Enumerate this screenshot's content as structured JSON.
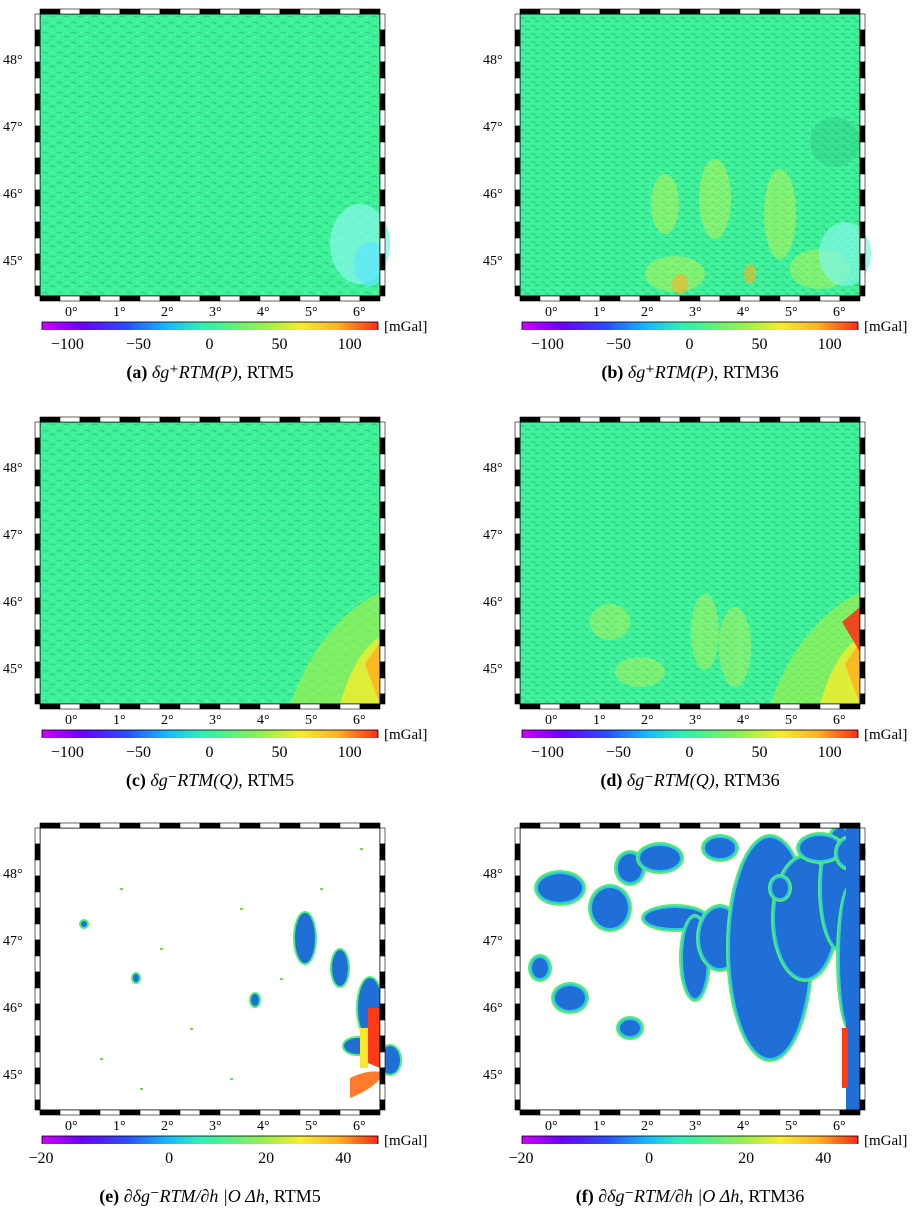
{
  "lat_ticks": [
    "48°",
    "47°",
    "46°",
    "45°"
  ],
  "lon_ticks": [
    "0°",
    "1°",
    "2°",
    "3°",
    "4°",
    "5°",
    "6°"
  ],
  "unit": "[mGal]",
  "colorbar_main": [
    "−100",
    "−50",
    "0",
    "50",
    "100"
  ],
  "colorbar_bottom": [
    "−20",
    "0",
    "20",
    "40"
  ],
  "colors": {
    "map_green": "#3ef29a",
    "blue_patch": "#1f6fd6",
    "colormap": [
      "#d000ff",
      "#6a00ff",
      "#2a4cff",
      "#14b8ff",
      "#2ff0b8",
      "#3ef29a",
      "#98f04e",
      "#f5ee2e",
      "#ffb022",
      "#ff2a16"
    ]
  },
  "panels": [
    {
      "id": "a",
      "letter": "(a)",
      "expr": "δg⁺RTM(P)",
      "model": "RTM5"
    },
    {
      "id": "b",
      "letter": "(b)",
      "expr": "δg⁺RTM(P)",
      "model": "RTM36"
    },
    {
      "id": "c",
      "letter": "(c)",
      "expr": "δg⁻RTM(Q)",
      "model": "RTM5"
    },
    {
      "id": "d",
      "letter": "(d)",
      "expr": "δg⁻RTM(Q)",
      "model": "RTM36"
    },
    {
      "id": "e",
      "letter": "(e)",
      "expr": "∂δg⁻RTM/∂h |O Δh",
      "model": "RTM5"
    },
    {
      "id": "f",
      "letter": "(f)",
      "expr": "∂δg⁻RTM/∂h |O Δh",
      "model": "RTM36"
    }
  ]
}
